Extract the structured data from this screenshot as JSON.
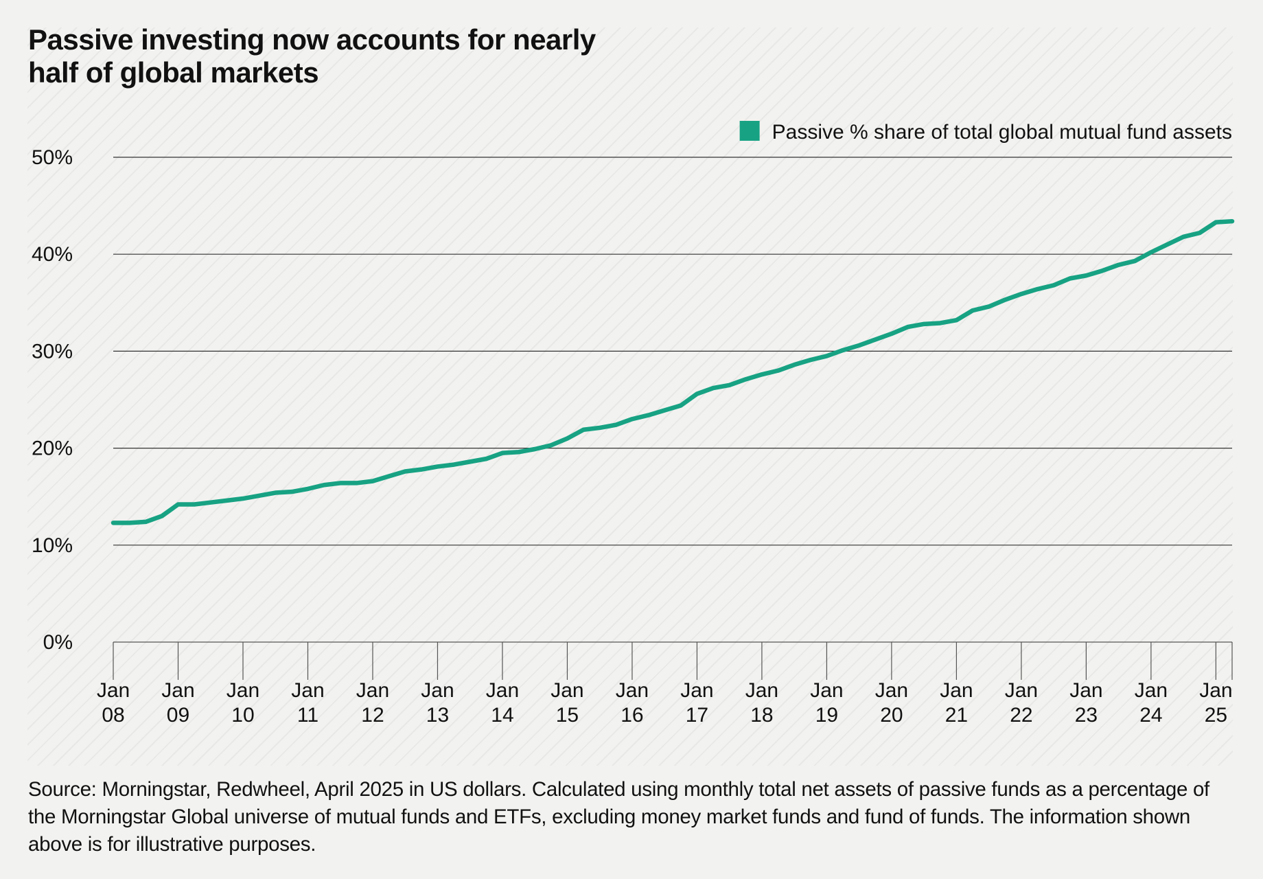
{
  "chart_data": {
    "type": "line",
    "title": "Passive investing now accounts for nearly half of global markets",
    "source": "Source: Morningstar, Redwheel, April 2025 in US dollars. Calculated using monthly total net assets of passive funds as a percentage of the Morningstar Global universe of mutual funds and ETFs, excluding money market funds and fund of funds. The information shown above is for illustrative purposes.",
    "x": [
      "2008-01",
      "2008-04",
      "2008-07",
      "2008-10",
      "2009-01",
      "2009-04",
      "2009-07",
      "2009-10",
      "2010-01",
      "2010-04",
      "2010-07",
      "2010-10",
      "2011-01",
      "2011-04",
      "2011-07",
      "2011-10",
      "2012-01",
      "2012-04",
      "2012-07",
      "2012-10",
      "2013-01",
      "2013-04",
      "2013-07",
      "2013-10",
      "2014-01",
      "2014-04",
      "2014-07",
      "2014-10",
      "2015-01",
      "2015-04",
      "2015-07",
      "2015-10",
      "2016-01",
      "2016-04",
      "2016-07",
      "2016-10",
      "2017-01",
      "2017-04",
      "2017-07",
      "2017-10",
      "2018-01",
      "2018-04",
      "2018-07",
      "2018-10",
      "2019-01",
      "2019-04",
      "2019-07",
      "2019-10",
      "2020-01",
      "2020-04",
      "2020-07",
      "2020-10",
      "2021-01",
      "2021-04",
      "2021-07",
      "2021-10",
      "2022-01",
      "2022-04",
      "2022-07",
      "2022-10",
      "2023-01",
      "2023-04",
      "2023-07",
      "2023-10",
      "2024-01",
      "2024-04",
      "2024-07",
      "2024-10",
      "2025-01",
      "2025-04"
    ],
    "series": [
      {
        "name": "Passive % share of total global mutual fund assets",
        "color": "#17a283",
        "values": [
          12.3,
          12.3,
          12.4,
          13.0,
          14.2,
          14.2,
          14.4,
          14.6,
          14.8,
          15.1,
          15.4,
          15.5,
          15.8,
          16.2,
          16.4,
          16.4,
          16.6,
          17.1,
          17.6,
          17.8,
          18.1,
          18.3,
          18.6,
          18.9,
          19.5,
          19.6,
          19.9,
          20.3,
          21.0,
          21.9,
          22.1,
          22.4,
          23.0,
          23.4,
          23.9,
          24.4,
          25.6,
          26.2,
          26.5,
          27.1,
          27.6,
          28.0,
          28.6,
          29.1,
          29.5,
          30.1,
          30.6,
          31.2,
          31.8,
          32.5,
          32.8,
          32.9,
          33.2,
          34.2,
          34.6,
          35.3,
          35.9,
          36.4,
          36.8,
          37.5,
          37.8,
          38.3,
          38.9,
          39.3,
          40.2,
          41.0,
          41.8,
          42.2,
          43.3,
          43.4
        ]
      }
    ],
    "xlim": [
      "2008-01",
      "2025-04"
    ],
    "xticks": [
      {
        "value": "2008-01",
        "label": "Jan 08"
      },
      {
        "value": "2009-01",
        "label": "Jan 09"
      },
      {
        "value": "2010-01",
        "label": "Jan 10"
      },
      {
        "value": "2011-01",
        "label": "Jan 11"
      },
      {
        "value": "2012-01",
        "label": "Jan 12"
      },
      {
        "value": "2013-01",
        "label": "Jan 13"
      },
      {
        "value": "2014-01",
        "label": "Jan 14"
      },
      {
        "value": "2015-01",
        "label": "Jan 15"
      },
      {
        "value": "2016-01",
        "label": "Jan 16"
      },
      {
        "value": "2017-01",
        "label": "Jan 17"
      },
      {
        "value": "2018-01",
        "label": "Jan 18"
      },
      {
        "value": "2019-01",
        "label": "Jan 19"
      },
      {
        "value": "2020-01",
        "label": "Jan 20"
      },
      {
        "value": "2021-01",
        "label": "Jan 21"
      },
      {
        "value": "2022-01",
        "label": "Jan 22"
      },
      {
        "value": "2023-01",
        "label": "Jan 23"
      },
      {
        "value": "2024-01",
        "label": "Jan 24"
      },
      {
        "value": "2025-01",
        "label": "Jan 25"
      }
    ],
    "ylim": [
      0,
      50
    ],
    "yticks": [
      {
        "value": 0,
        "label": "0%"
      },
      {
        "value": 10,
        "label": "10%"
      },
      {
        "value": 20,
        "label": "20%"
      },
      {
        "value": 30,
        "label": "30%"
      },
      {
        "value": 40,
        "label": "40%"
      },
      {
        "value": 50,
        "label": "50%"
      }
    ],
    "grid": true,
    "legend": "top-right"
  }
}
